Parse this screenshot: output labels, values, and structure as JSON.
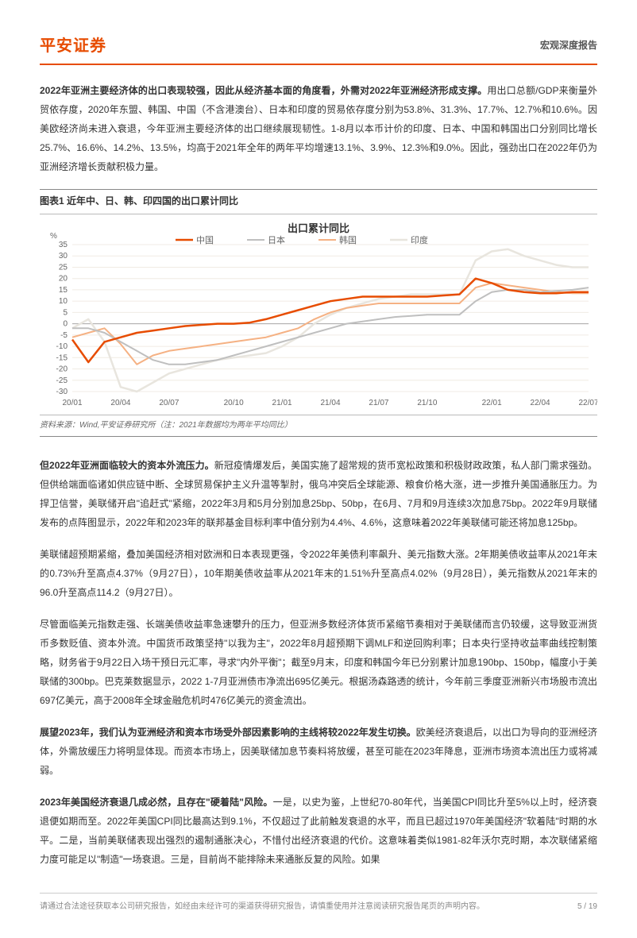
{
  "header": {
    "logo": "平安证券",
    "report_type": "宏观深度报告"
  },
  "para1_bold": "2022年亚洲主要经济体的出口表现较强，因此从经济基本面的角度看，外需对2022年亚洲经济形成支撑。",
  "para1_rest": "用出口总额/GDP来衡量外贸依存度，2020年东盟、韩国、中国（不含港澳台）、日本和印度的贸易依存度分别为53.8%、31.3%、17.7%、12.7%和10.6%。因美欧经济尚未进入衰退，今年亚洲主要经济体的出口继续展现韧性。1-8月以本币计价的印度、日本、中国和韩国出口分别同比增长25.7%、16.6%、14.2%、13.5%，均高于2021年全年的两年平均增速13.1%、3.9%、12.3%和9.0%。因此，强劲出口在2022年仍为亚洲经济增长贡献积极力量。",
  "chart1": {
    "table_label": "图表1    近年中、日、韩、印四国的出口累计同比",
    "title": "出口累计同比",
    "ylabel": "%",
    "ylim": [
      -30,
      35
    ],
    "ytick_step": 5,
    "x_labels": [
      "20/01",
      "20/04",
      "20/07",
      "20/10",
      "21/01",
      "21/04",
      "21/07",
      "21/10",
      "22/01",
      "22/04",
      "22/07"
    ],
    "background_color": "#ffffff",
    "grid_color": "#f0ebe4",
    "axis_color": "#aaa",
    "series": [
      {
        "name": "中国",
        "color": "#e74c00",
        "width": 2.5,
        "data": [
          -7,
          -17,
          -8,
          -6,
          -4,
          -3,
          -2,
          -1,
          -0.5,
          0,
          0,
          0.5,
          2,
          4,
          6,
          8,
          10,
          11,
          12,
          12,
          12,
          12,
          12,
          12.5,
          13,
          20,
          18,
          15,
          14,
          13.5,
          13.5,
          14,
          14
        ]
      },
      {
        "name": "日本",
        "color": "#bfbfbf",
        "width": 2,
        "data": [
          -2,
          -2,
          -4,
          -8,
          -12,
          -16,
          -18,
          -18,
          -17,
          -16,
          -14,
          -12,
          -10,
          -8,
          -6,
          -4,
          -2,
          0,
          1,
          2,
          3,
          3.5,
          4,
          4,
          4,
          10,
          14,
          15,
          15,
          14,
          14.5,
          15,
          16
        ]
      },
      {
        "name": "韩国",
        "color": "#f5b183",
        "width": 2,
        "data": [
          -6,
          -4,
          -2,
          -9,
          -18,
          -14,
          -12,
          -11,
          -10,
          -9,
          -8,
          -7,
          -6,
          -4,
          -2,
          2,
          5,
          7,
          8,
          9,
          9,
          9,
          9,
          9,
          9,
          16,
          18,
          17,
          16,
          15,
          14,
          13.5,
          13.5
        ]
      },
      {
        "name": "印度",
        "color": "#e8e5de",
        "width": 2.5,
        "data": [
          -2,
          2,
          -8,
          -28,
          -30,
          -26,
          -22,
          -20,
          -18,
          -16,
          -15,
          -14,
          -13,
          -10,
          -6,
          0,
          4,
          7,
          9,
          11,
          12,
          13,
          13,
          13,
          13,
          28,
          32,
          33,
          30,
          28,
          26,
          25,
          25
        ]
      }
    ],
    "source": "资料来源：Wind,平安证券研究所（注：2021年数据均为两年平均同比）"
  },
  "para2_bold": "但2022年亚洲面临较大的资本外流压力。",
  "para2_rest": "新冠疫情爆发后，美国实施了超常规的货币宽松政策和积极财政政策，私人部门需求强劲。但供给端面临诸如供应链中断、全球贸易保护主义升温等掣肘，俄乌冲突后全球能源、粮食价格大涨，进一步推升美国通胀压力。为捍卫信誉，美联储开启\"追赶式\"紧缩，2022年3月和5月分别加息25bp、50bp，在6月、7月和9月连续3次加息75bp。2022年9月联储发布的点阵图显示，2022年和2023年的联邦基金目标利率中值分别为4.4%、4.6%，这意味着2022年美联储可能还将加息125bp。",
  "para3": "美联储超预期紧缩，叠加美国经济相对欧洲和日本表现更强，令2022年美债利率飙升、美元指数大涨。2年期美债收益率从2021年末的0.73%升至高点4.37%（9月27日），10年期美债收益率从2021年末的1.51%升至高点4.02%（9月28日），美元指数从2021年末的96.0升至高点114.2（9月27日）。",
  "para4": "尽管面临美元指数走强、长端美债收益率急速攀升的压力，但亚洲多数经济体货币紧缩节奏相对于美联储而言仍较缓，这导致亚洲货币多数贬值、资本外流。中国货币政策坚持\"以我为主\"，2022年8月超预期下调MLF和逆回购利率；日本央行坚持收益率曲线控制策略，财务省于9月22日入场干预日元汇率，寻求\"内外平衡\"；截至9月末，印度和韩国今年已分别累计加息190bp、150bp，幅度小于美联储的300bp。巴克莱数据显示，2022 1-7月亚洲债市净流出695亿美元。根据汤森路透的统计，今年前三季度亚洲新兴市场股市流出697亿美元，高于2008年全球金融危机时476亿美元的资金流出。",
  "para5_bold": "展望2023年，我们认为亚洲经济和资本市场受外部因素影响的主线将较2022年发生切换。",
  "para5_rest": "欧美经济衰退后，以出口为导向的亚洲经济体，外需放缓压力将明显体现。而资本市场上，因美联储加息节奏料将放缓，甚至可能在2023年降息，亚洲市场资本流出压力或将减弱。",
  "para6_bold": "2023年美国经济衰退几成必然，且存在\"硬着陆\"风险。",
  "para6_rest": "一是，以史为鉴，上世纪70-80年代，当美国CPI同比升至5%以上时，经济衰退便如期而至。2022年美国CPI同比最高达到9.1%，不仅超过了此前触发衰退的水平，而且已超过1970年美国经济\"软着陆\"时期的水平。二是，当前美联储表现出强烈的遏制通胀决心，不惜付出经济衰退的代价。这意味着类似1981-82年沃尔克时期，本次联储紧缩力度可能足以\"制造\"一场衰退。三是，目前尚不能排除未来通胀反复的风险。如果",
  "footer": {
    "disclaimer": "请通过合法途径获取本公司研究报告，如经由未经许可的渠道获得研究报告，请慎重使用并注意阅读研究报告尾页的声明内容。",
    "page": "5 / 19"
  }
}
